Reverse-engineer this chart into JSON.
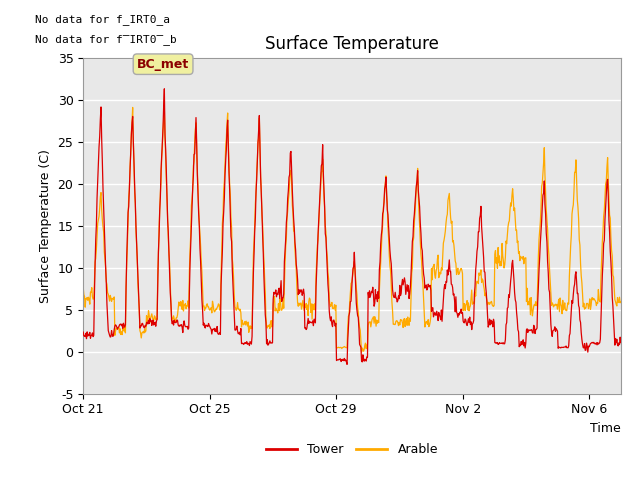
{
  "title": "Surface Temperature",
  "ylabel": "Surface Temperature (C)",
  "xlabel": "Time",
  "ylim": [
    -5,
    35
  ],
  "yticks": [
    -5,
    0,
    5,
    10,
    15,
    20,
    25,
    30,
    35
  ],
  "xtick_labels": [
    "Oct 21",
    "Oct 25",
    "Oct 29",
    "Nov 2",
    "Nov 6"
  ],
  "no_data_text_1": "No data for f_IRT0_a",
  "no_data_text_2": "No data for f̅IRT0̅_b",
  "bc_met_label": "BC_met",
  "tower_color": "#dd0000",
  "arable_color": "#ffaa00",
  "bg_color": "#e8e8e8",
  "fig_bg": "#ffffff",
  "legend_labels": [
    "Tower",
    "Arable"
  ],
  "tower_day_peaks": [
    29.5,
    28.8,
    30.5,
    27.5,
    27.5,
    28.0,
    23.5,
    24.5,
    11.0,
    21.0,
    21.5,
    10.5,
    17.5,
    10.5,
    20.5,
    9.5,
    21.0
  ],
  "tower_day_mins": [
    2.0,
    3.0,
    3.5,
    3.0,
    2.5,
    1.0,
    7.0,
    3.5,
    -1.0,
    6.5,
    7.5,
    4.5,
    3.5,
    1.0,
    2.5,
    0.5,
    1.0
  ],
  "arable_day_peaks": [
    19.0,
    28.8,
    29.5,
    27.5,
    28.5,
    27.5,
    22.5,
    23.0,
    11.0,
    21.5,
    21.5,
    19.0,
    9.5,
    19.0,
    24.0,
    23.0,
    23.0
  ],
  "arable_day_mins": [
    6.5,
    2.5,
    4.0,
    5.5,
    5.0,
    3.0,
    5.5,
    5.5,
    0.5,
    3.5,
    3.5,
    9.5,
    5.5,
    11.0,
    5.5,
    5.5,
    6.0
  ]
}
